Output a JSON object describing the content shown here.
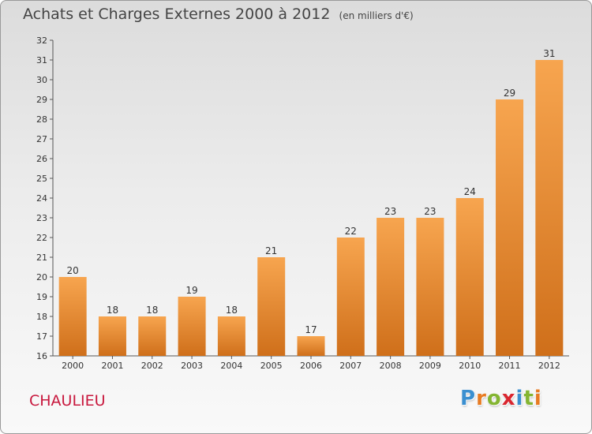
{
  "title": "Achats et Charges Externes 2000 à 2012",
  "unit_note": "(en milliers d'€)",
  "commune": "CHAULIEU",
  "brand": {
    "letters": [
      {
        "ch": "P",
        "color": "#3a8fd0"
      },
      {
        "ch": "r",
        "color": "#e87b22"
      },
      {
        "ch": "o",
        "color": "#84b532"
      },
      {
        "ch": "x",
        "color": "#d9262f"
      },
      {
        "ch": "i",
        "color": "#3a8fd0"
      },
      {
        "ch": "t",
        "color": "#84b532"
      },
      {
        "ch": "i",
        "color": "#e87b22"
      }
    ]
  },
  "colors": {
    "bar_light": "#f7a54f",
    "bar_dark": "#cf6f1a",
    "axis": "#555555",
    "text": "#333333"
  },
  "chart_data": {
    "type": "bar",
    "categories": [
      "2000",
      "2001",
      "2002",
      "2003",
      "2004",
      "2005",
      "2006",
      "2007",
      "2008",
      "2009",
      "2010",
      "2011",
      "2012"
    ],
    "values": [
      20,
      18,
      18,
      19,
      18,
      21,
      17,
      22,
      23,
      23,
      24,
      29,
      31
    ],
    "data_labels": [
      "20",
      "18",
      "18",
      "19",
      "18",
      "21",
      "17",
      "22",
      "23",
      "23",
      "24",
      "29",
      "31"
    ],
    "yticks": [
      "16",
      "17",
      "18",
      "19",
      "20",
      "21",
      "22",
      "23",
      "24",
      "25",
      "26",
      "27",
      "28",
      "29",
      "30",
      "31",
      "32"
    ],
    "ylim": [
      16,
      32
    ],
    "grid": false,
    "legend": "none"
  }
}
